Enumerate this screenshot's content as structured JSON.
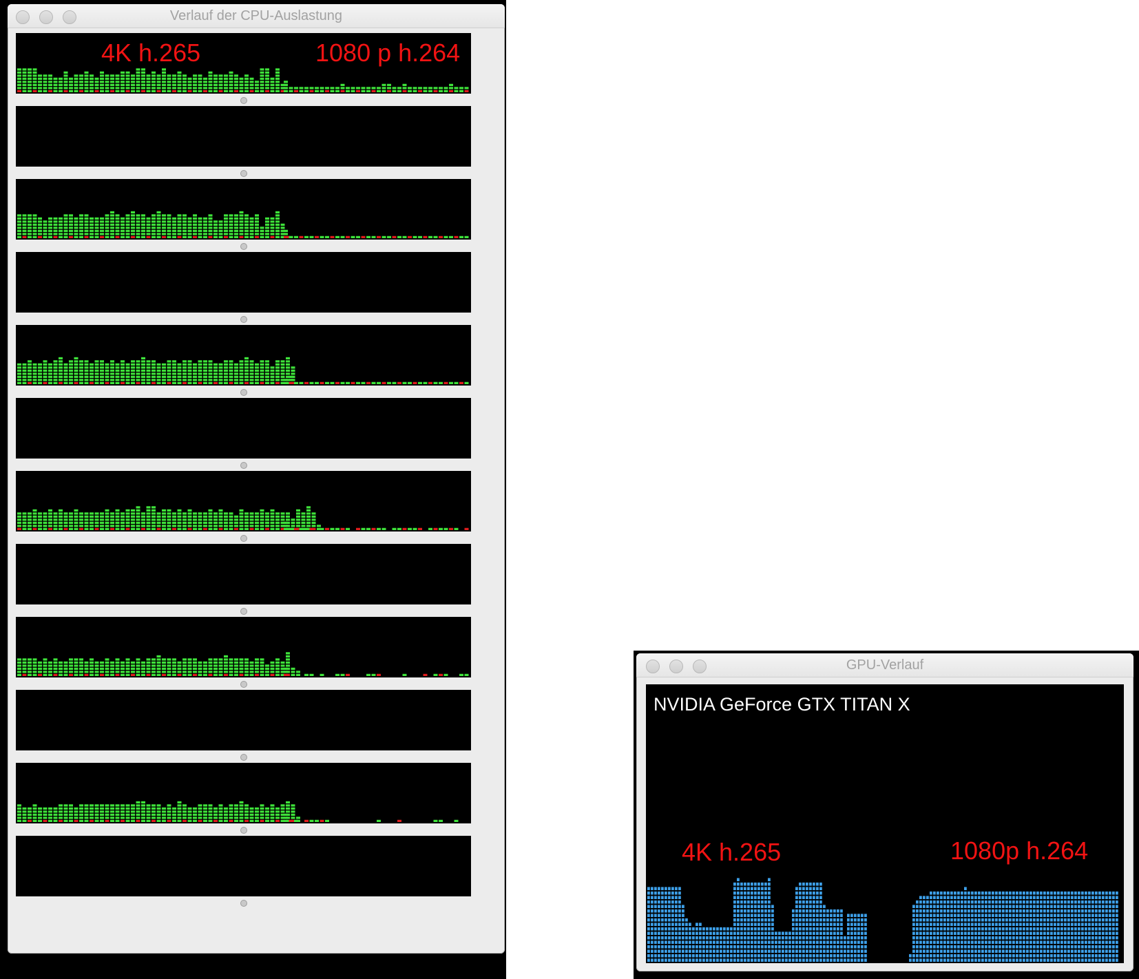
{
  "cpu_window": {
    "title": "Verlauf der CPU-Auslastung",
    "annotation_left": "4K h.265",
    "annotation_right": "1080 p h.264",
    "colors": {
      "user": "#3ee23a",
      "system": "#e01c1c",
      "background": "#000000"
    },
    "graphs": [
      {
        "active": true,
        "segments": [
          [
            8,
            8,
            8,
            8,
            6,
            6,
            6,
            5,
            5,
            7,
            5,
            6,
            6,
            7,
            6,
            5,
            7,
            6,
            6,
            6,
            7,
            7,
            6,
            8,
            8,
            6,
            7,
            6,
            8,
            6,
            6,
            7,
            6,
            5,
            6,
            6,
            5,
            7,
            6,
            6,
            6,
            7,
            6,
            5,
            6,
            5,
            4,
            8,
            8,
            5,
            8,
            3
          ],
          [
            4,
            2,
            2,
            2,
            2,
            2,
            2,
            2,
            2,
            2,
            2,
            3,
            2,
            2,
            2,
            2,
            2,
            2,
            2,
            3,
            3,
            2,
            2,
            3,
            2,
            2,
            2,
            2,
            2,
            2,
            2,
            2,
            3,
            2,
            2,
            2,
            2,
            2,
            2,
            2,
            2,
            2,
            2,
            3,
            2,
            3,
            2,
            2,
            2,
            3,
            2,
            3,
            2
          ]
        ]
      },
      {
        "active": false
      },
      {
        "active": true,
        "segments": [
          [
            8,
            8,
            8,
            8,
            7,
            6,
            7,
            7,
            7,
            8,
            8,
            7,
            8,
            8,
            7,
            7,
            7,
            8,
            9,
            8,
            7,
            8,
            9,
            8,
            8,
            7,
            8,
            9,
            8,
            8,
            7,
            8,
            8,
            7,
            8,
            7,
            7,
            8,
            6,
            6,
            8,
            8,
            8,
            9,
            8,
            7,
            8,
            4,
            7,
            7,
            9,
            5,
            1
          ],
          [
            3,
            1,
            1,
            1,
            1,
            1,
            1,
            1,
            1,
            1,
            1,
            1,
            1,
            1,
            1,
            1,
            1,
            1,
            1,
            1,
            1,
            1,
            1,
            1,
            1,
            1,
            1,
            1,
            1,
            1,
            1,
            1,
            1,
            1,
            1,
            1,
            1,
            1,
            1,
            1,
            1,
            1,
            1,
            1,
            1,
            1,
            1,
            1,
            1,
            1,
            1,
            1,
            1
          ]
        ]
      },
      {
        "active": false
      },
      {
        "active": true,
        "segments": [
          [
            7,
            7,
            8,
            7,
            7,
            8,
            7,
            8,
            9,
            7,
            8,
            9,
            8,
            8,
            7,
            8,
            8,
            7,
            8,
            7,
            8,
            7,
            8,
            8,
            9,
            8,
            8,
            7,
            7,
            8,
            8,
            7,
            8,
            8,
            7,
            8,
            8,
            8,
            7,
            7,
            8,
            8,
            7,
            8,
            9,
            8,
            7,
            8,
            8,
            6,
            8,
            8,
            9,
            6
          ],
          [
            2,
            3,
            1,
            1,
            1,
            1,
            1,
            1,
            1,
            1,
            1,
            1,
            1,
            1,
            1,
            1,
            1,
            1,
            1,
            1,
            1,
            1,
            1,
            1,
            1,
            1,
            1,
            1,
            1,
            1,
            1,
            1,
            1,
            1,
            1,
            1,
            1,
            1,
            1,
            1,
            1,
            1,
            1,
            1,
            1,
            1,
            1,
            1,
            1,
            1,
            1,
            1,
            1,
            1,
            1,
            1,
            1,
            2,
            1,
            1,
            1,
            2,
            1
          ]
        ]
      },
      {
        "active": false
      },
      {
        "active": true,
        "segments": [
          [
            6,
            6,
            6,
            7,
            6,
            6,
            7,
            6,
            7,
            6,
            6,
            7,
            6,
            6,
            6,
            6,
            6,
            7,
            6,
            7,
            6,
            7,
            7,
            8,
            6,
            8,
            8,
            6,
            7,
            7,
            6,
            7,
            6,
            7,
            6,
            6,
            6,
            7,
            6,
            7,
            6,
            6,
            5,
            7,
            6,
            6,
            6,
            7,
            6,
            7,
            6,
            6,
            6,
            4,
            7,
            6,
            8,
            6,
            2
          ],
          [
            3,
            1,
            1,
            1,
            1,
            1,
            0,
            1,
            1,
            1,
            1,
            1,
            1,
            0,
            1,
            1,
            1,
            1,
            1,
            1,
            0,
            1,
            1,
            1,
            1,
            1,
            1,
            0,
            1,
            1,
            1,
            1,
            1,
            1,
            0,
            1,
            1,
            1,
            1,
            1,
            1
          ]
        ]
      },
      {
        "active": false
      },
      {
        "active": true,
        "segments": [
          [
            6,
            6,
            6,
            6,
            5,
            6,
            5,
            6,
            5,
            5,
            6,
            6,
            6,
            5,
            6,
            5,
            5,
            6,
            5,
            6,
            5,
            6,
            5,
            6,
            5,
            6,
            6,
            7,
            6,
            6,
            6,
            5,
            6,
            6,
            6,
            5,
            5,
            6,
            6,
            6,
            7,
            6,
            6,
            6,
            6,
            5,
            6,
            6,
            4,
            5,
            6,
            5,
            8,
            3,
            2
          ],
          [
            3,
            0,
            0,
            0,
            1,
            1,
            0,
            1,
            0,
            0,
            1,
            1,
            1,
            0,
            0,
            0,
            1,
            1,
            1,
            0,
            0,
            0,
            0,
            1,
            0,
            0,
            0,
            1,
            0,
            1,
            1,
            1,
            0,
            0,
            1,
            1,
            1,
            1,
            0,
            1,
            0,
            0
          ]
        ]
      },
      {
        "active": false
      },
      {
        "active": true,
        "segments": [
          [
            6,
            5,
            5,
            6,
            5,
            5,
            5,
            5,
            6,
            6,
            6,
            5,
            6,
            6,
            6,
            6,
            6,
            6,
            6,
            6,
            6,
            6,
            6,
            7,
            7,
            6,
            6,
            6,
            5,
            6,
            5,
            7,
            6,
            5,
            5,
            6,
            6,
            6,
            5,
            6,
            5,
            6,
            6,
            7,
            6,
            5,
            5,
            6,
            5,
            6,
            5,
            6,
            7,
            6,
            2
          ],
          [
            3,
            1,
            1,
            0,
            1,
            1,
            1,
            1,
            1,
            0,
            0,
            0,
            0,
            0,
            0,
            0,
            0,
            0,
            1,
            0,
            0,
            0,
            1,
            0,
            0,
            0,
            0,
            0,
            0,
            1,
            1,
            0,
            0,
            1,
            0,
            0
          ]
        ]
      },
      {
        "active": false
      }
    ]
  },
  "gpu_window": {
    "title": "GPU-Verlauf",
    "gpu_name": "NVIDIA GeForce GTX TITAN X",
    "annotation_left": "4K h.265",
    "annotation_right": "1080p h.264",
    "colors": {
      "bar": "#3d9fe8",
      "background": "#000000"
    },
    "columns": [
      17,
      17,
      17,
      17,
      17,
      17,
      17,
      17,
      17,
      17,
      13,
      10,
      9,
      8,
      9,
      9,
      8,
      8,
      8,
      8,
      8,
      8,
      8,
      8,
      8,
      18,
      19,
      18,
      18,
      18,
      18,
      18,
      18,
      18,
      18,
      19,
      13,
      7,
      7,
      7,
      7,
      7,
      12,
      17,
      18,
      18,
      18,
      18,
      18,
      18,
      18,
      13,
      12,
      12,
      12,
      12,
      12,
      6,
      11,
      11,
      11,
      11,
      11,
      11,
      0,
      0,
      0,
      0,
      0,
      0,
      0,
      0,
      0,
      0,
      0,
      0,
      2,
      13,
      14,
      15,
      15,
      15,
      16,
      16,
      16,
      16,
      16,
      16,
      16,
      16,
      16,
      16,
      17,
      16,
      16,
      16,
      16,
      16,
      16,
      16,
      16,
      16,
      16,
      16,
      16,
      16,
      16,
      16,
      16,
      16,
      16,
      16,
      16,
      16,
      16,
      16,
      16,
      16,
      16,
      16,
      16,
      16,
      16,
      16,
      16,
      16,
      16,
      16,
      16,
      16,
      16,
      16,
      16,
      16,
      16,
      16,
      16
    ],
    "max_level": 30
  }
}
